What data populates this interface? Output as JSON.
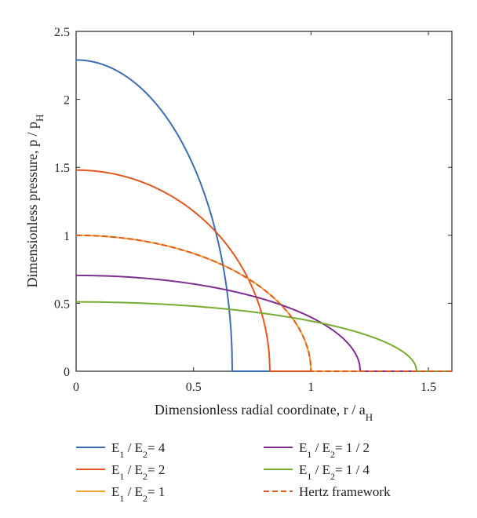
{
  "chart_data": {
    "type": "line",
    "xlabel": "Dimensionless radial coordinate, r / a",
    "xlabel_sub": "H",
    "ylabel": "Dimensionless pressure, p / p",
    "ylabel_sub": "H",
    "xlim": [
      0,
      1.6
    ],
    "ylim": [
      0,
      2.5
    ],
    "xticks": [
      0,
      0.5,
      1,
      1.5
    ],
    "xtick_labels": [
      "0",
      "0.5",
      "1",
      "1.5"
    ],
    "yticks": [
      0,
      0.5,
      1,
      1.5,
      2,
      2.5
    ],
    "ytick_labels": [
      "0",
      "0.5",
      "1",
      "1.5",
      "2",
      "2.5"
    ],
    "grid": false,
    "legend_position": "bottom, two columns",
    "series": [
      {
        "label": [
          "E",
          "1",
          " / E",
          "2",
          "= 4"
        ],
        "color": "#3b6db5",
        "dash": "solid",
        "p0": 2.29,
        "a": 0.665
      },
      {
        "label": [
          "E",
          "1",
          " / E",
          "2",
          "= 2"
        ],
        "color": "#e2571e",
        "dash": "solid",
        "p0": 1.48,
        "a": 0.825
      },
      {
        "label": [
          "E",
          "1",
          " / E",
          "2",
          "= 1"
        ],
        "color": "#f0a22e",
        "dash": "solid",
        "p0": 1.0,
        "a": 1.0
      },
      {
        "label": [
          "E",
          "1",
          " / E",
          "2",
          "= 1 / 2"
        ],
        "color": "#7e2e8e",
        "dash": "solid",
        "p0": 0.705,
        "a": 1.21
      },
      {
        "label": [
          "E",
          "1",
          " / E",
          "2",
          "= 1 / 4"
        ],
        "color": "#77ac30",
        "dash": "solid",
        "p0": 0.51,
        "a": 1.45
      },
      {
        "label": [
          "Hertz framework",
          "",
          "",
          "",
          ""
        ],
        "color": "#e2571e",
        "dash": "dashed",
        "p0": 1.0,
        "a": 1.0
      }
    ]
  }
}
